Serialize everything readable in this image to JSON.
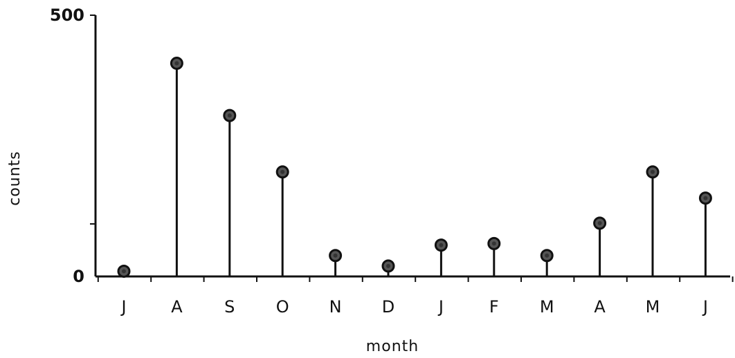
{
  "chart_data": {
    "type": "stem",
    "xlabel": "month",
    "ylabel": "counts",
    "categories": [
      "J",
      "A",
      "S",
      "O",
      "N",
      "D",
      "J",
      "F",
      "M",
      "A",
      "M",
      "J"
    ],
    "values": [
      10,
      408,
      308,
      200,
      40,
      20,
      60,
      63,
      40,
      102,
      200,
      150
    ],
    "ylim": [
      0,
      500
    ],
    "yticks": [
      0,
      500
    ],
    "ytick_labels": [
      "0",
      "500"
    ],
    "grid": false,
    "legend": "none"
  }
}
